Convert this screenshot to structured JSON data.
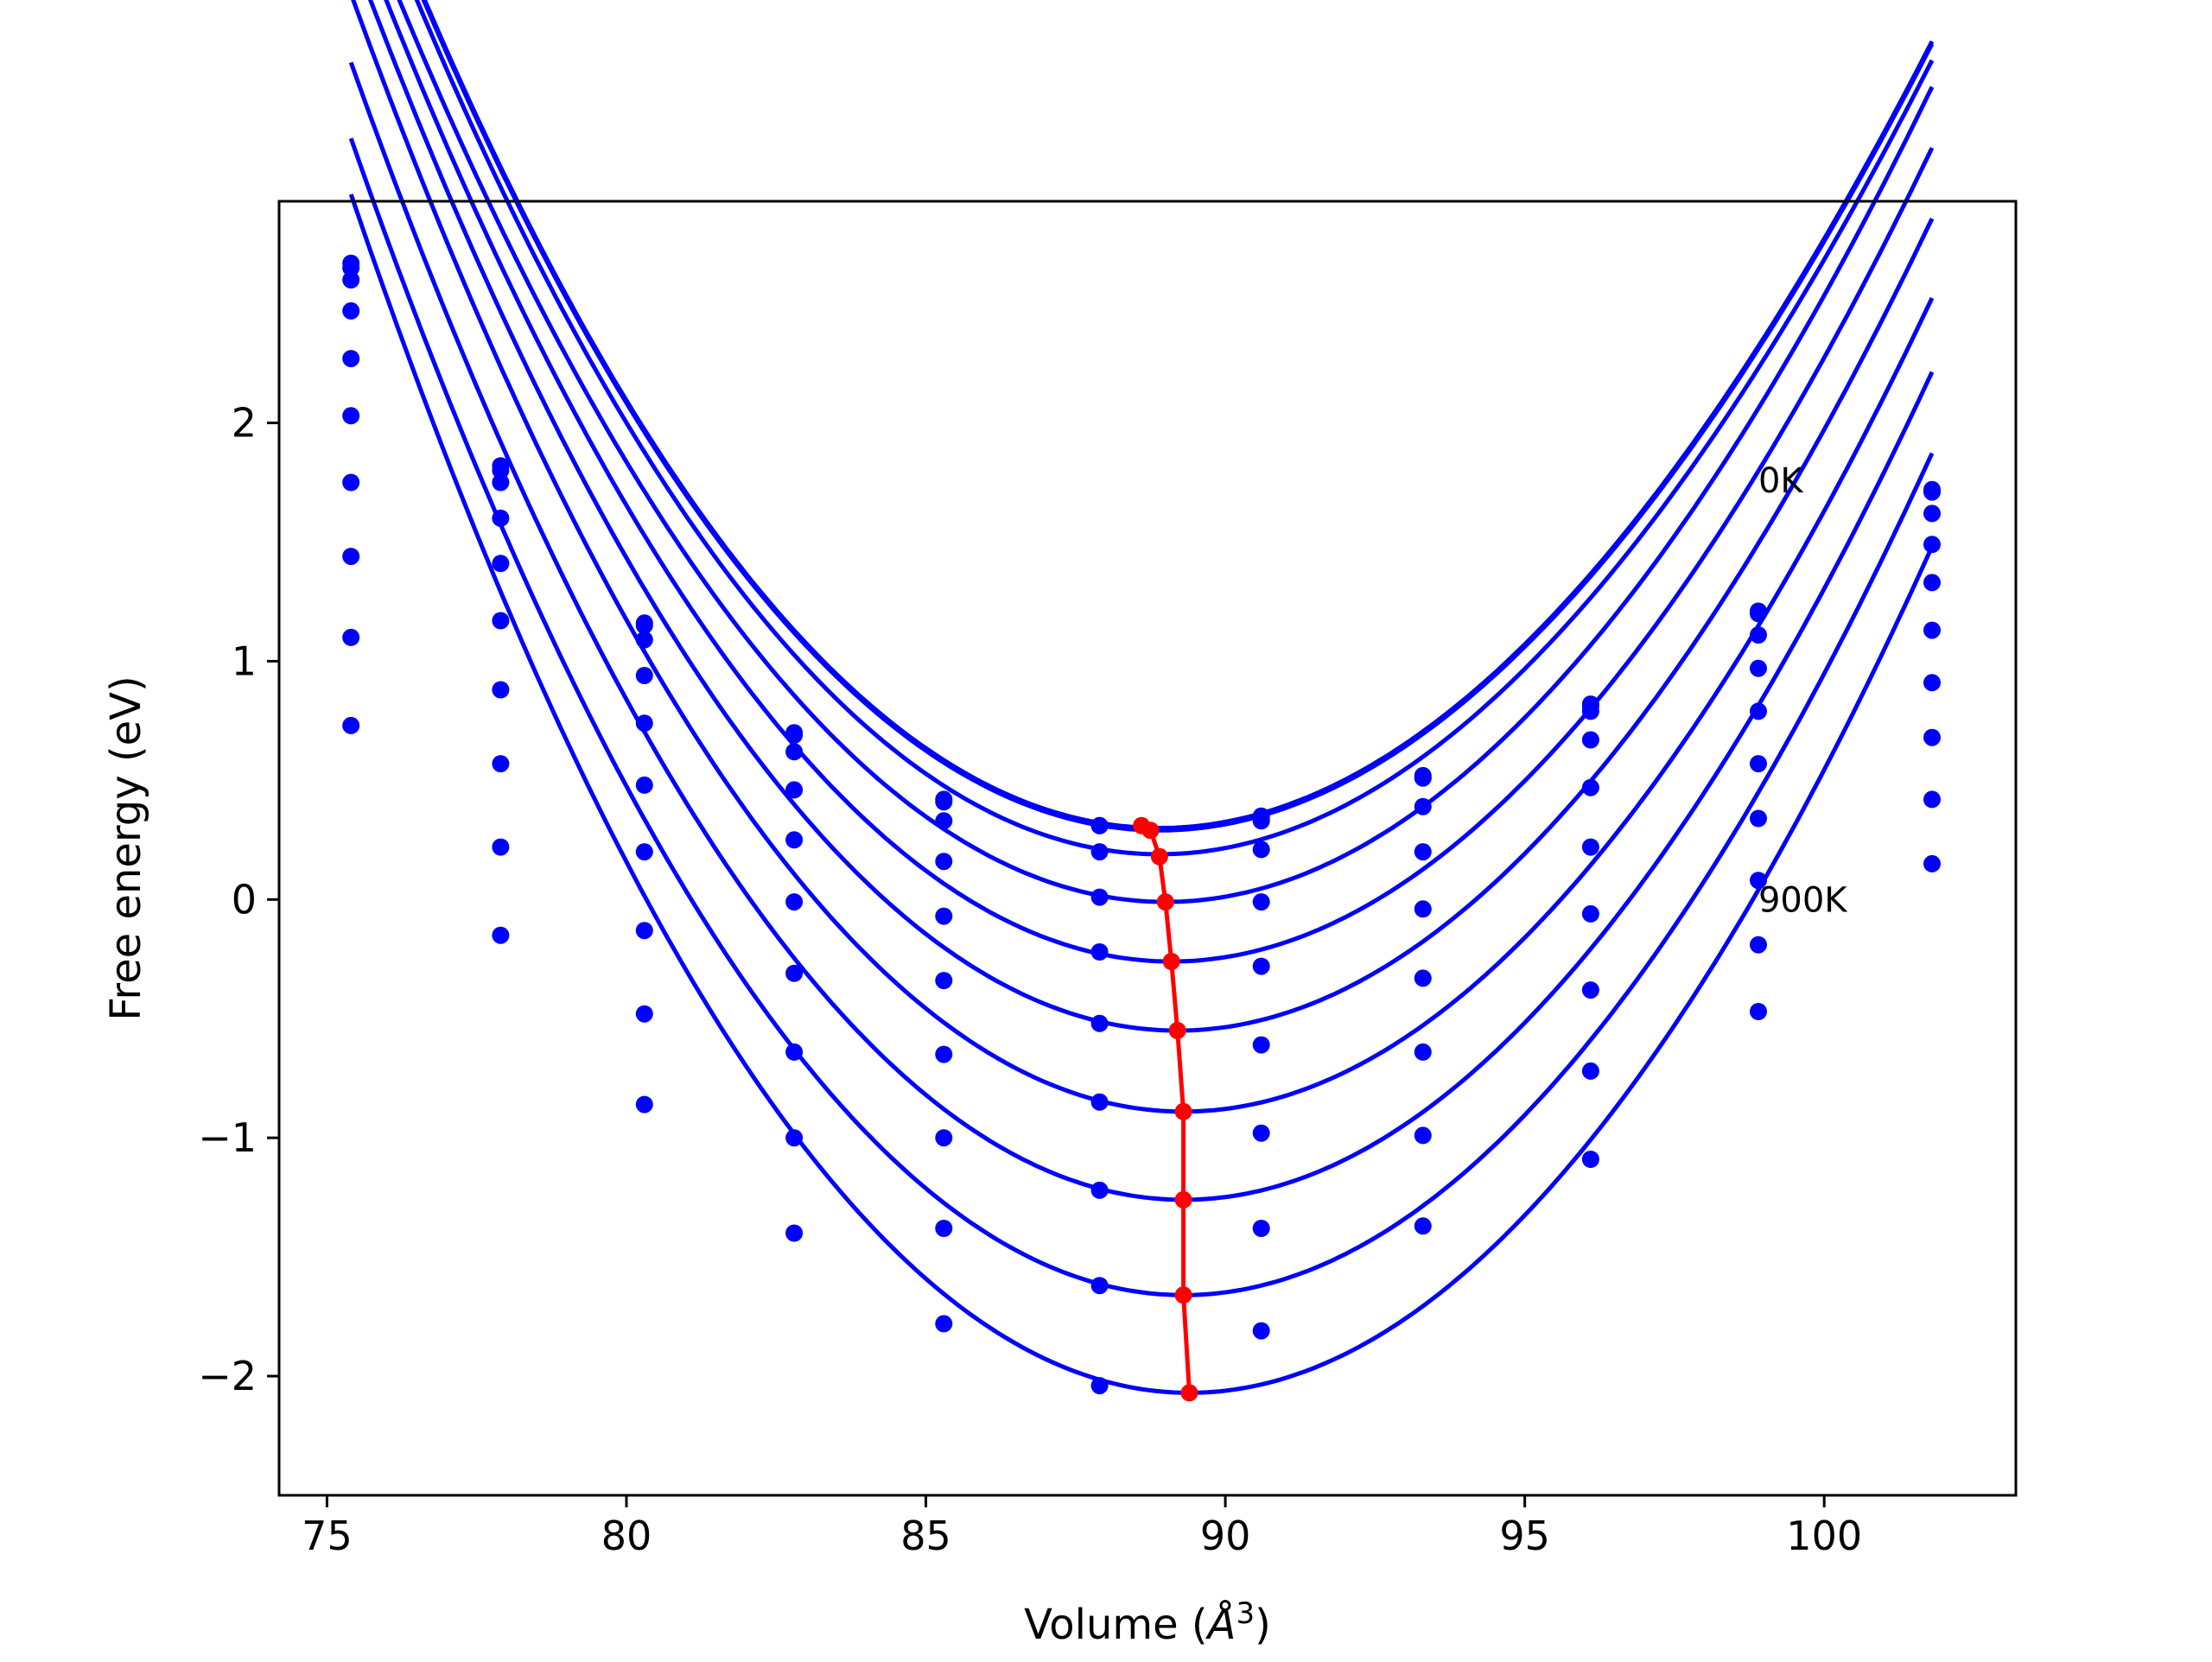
{
  "chart_data": {
    "type": "scatter",
    "title": "",
    "xlabel": "Volume (",
    "xlabel_unit": "Å",
    "xlabel_exp": "3",
    "xlabel_close": ")",
    "ylabel": "Free energy (eV)",
    "xlim": [
      74.2,
      103.2
    ],
    "ylim": [
      -2.5,
      2.93
    ],
    "xticks": [
      75,
      80,
      85,
      90,
      95,
      100
    ],
    "xtick_labels": [
      "75",
      "80",
      "85",
      "90",
      "95",
      "100"
    ],
    "yticks": [
      -2,
      -1,
      0,
      1,
      2
    ],
    "ytick_labels": [
      "−2",
      "−1",
      "0",
      "1",
      "2"
    ],
    "grid": false,
    "legend": "none",
    "annotations": [
      {
        "text": "0K",
        "x": 98.9,
        "y": 1.76
      },
      {
        "text": "900K",
        "x": 98.9,
        "y": 0.0
      }
    ],
    "colors": {
      "fit_curves": "#0000ff",
      "points": "#0000ff",
      "minimum_path": "#ff0000"
    },
    "volumes": [
      75.4,
      77.9,
      80.3,
      82.8,
      85.3,
      87.9,
      90.6,
      93.3,
      96.1,
      98.9,
      101.8
    ],
    "series": [
      {
        "points": [
          2.67,
          1.82,
          1.16,
          0.7,
          0.42,
          0.31,
          0.35,
          0.52,
          0.82,
          1.21,
          1.72
        ]
      },
      {
        "points": [
          2.65,
          1.8,
          1.15,
          0.69,
          0.41,
          0.31,
          0.34,
          0.51,
          0.81,
          1.2,
          1.71
        ]
      },
      {
        "points": [
          2.6,
          1.75,
          1.09,
          0.62,
          0.33,
          0.2,
          0.33,
          0.51,
          0.79,
          1.11,
          1.62
        ]
      },
      {
        "points": [
          2.47,
          1.6,
          0.94,
          0.46,
          0.16,
          0.01,
          0.21,
          0.39,
          0.67,
          0.97,
          1.49
        ]
      },
      {
        "points": [
          2.27,
          1.41,
          0.74,
          0.25,
          -0.07,
          -0.22,
          -0.01,
          0.2,
          0.47,
          0.79,
          1.33
        ]
      },
      {
        "points": [
          2.03,
          1.17,
          0.48,
          -0.01,
          -0.34,
          -0.52,
          -0.28,
          -0.04,
          0.22,
          0.57,
          1.13
        ]
      },
      {
        "points": [
          1.75,
          0.88,
          0.2,
          -0.31,
          -0.65,
          -0.85,
          -0.61,
          -0.33,
          -0.06,
          0.34,
          0.91
        ]
      },
      {
        "points": [
          1.44,
          0.57,
          -0.13,
          -0.64,
          -1.0,
          -1.22,
          -0.98,
          -0.64,
          -0.38,
          0.08,
          0.68
        ]
      },
      {
        "points": [
          1.1,
          0.22,
          -0.48,
          -1.0,
          -1.38,
          -1.62,
          -1.38,
          -0.99,
          -0.72,
          -0.19,
          0.42
        ]
      },
      {
        "points": [
          0.73,
          -0.15,
          -0.86,
          -1.4,
          -1.78,
          -2.04,
          -1.81,
          -1.37,
          -1.09,
          -0.47,
          0.15
        ]
      }
    ],
    "fits": [
      {
        "v0": 88.9,
        "e0": 0.3,
        "a": 0.0215
      },
      {
        "v0": 88.9,
        "e0": 0.29,
        "a": 0.0215
      },
      {
        "v0": 88.9,
        "e0": 0.19,
        "a": 0.0217
      },
      {
        "v0": 89.0,
        "e0": -0.01,
        "a": 0.022
      },
      {
        "v0": 89.1,
        "e0": -0.26,
        "a": 0.0223
      },
      {
        "v0": 89.2,
        "e0": -0.55,
        "a": 0.0226
      },
      {
        "v0": 89.3,
        "e0": -0.89,
        "a": 0.023
      },
      {
        "v0": 89.3,
        "e0": -1.26,
        "a": 0.0234
      },
      {
        "v0": 89.3,
        "e0": -1.66,
        "a": 0.0238
      },
      {
        "v0": 89.4,
        "e0": -2.07,
        "a": 0.0243
      }
    ],
    "minimum_path": {
      "x": [
        88.6,
        88.75,
        88.9,
        89.0,
        89.1,
        89.2,
        89.3,
        89.3,
        89.3,
        89.4
      ],
      "y": [
        0.31,
        0.29,
        0.18,
        -0.01,
        -0.26,
        -0.55,
        -0.89,
        -1.26,
        -1.66,
        -2.07
      ]
    }
  }
}
